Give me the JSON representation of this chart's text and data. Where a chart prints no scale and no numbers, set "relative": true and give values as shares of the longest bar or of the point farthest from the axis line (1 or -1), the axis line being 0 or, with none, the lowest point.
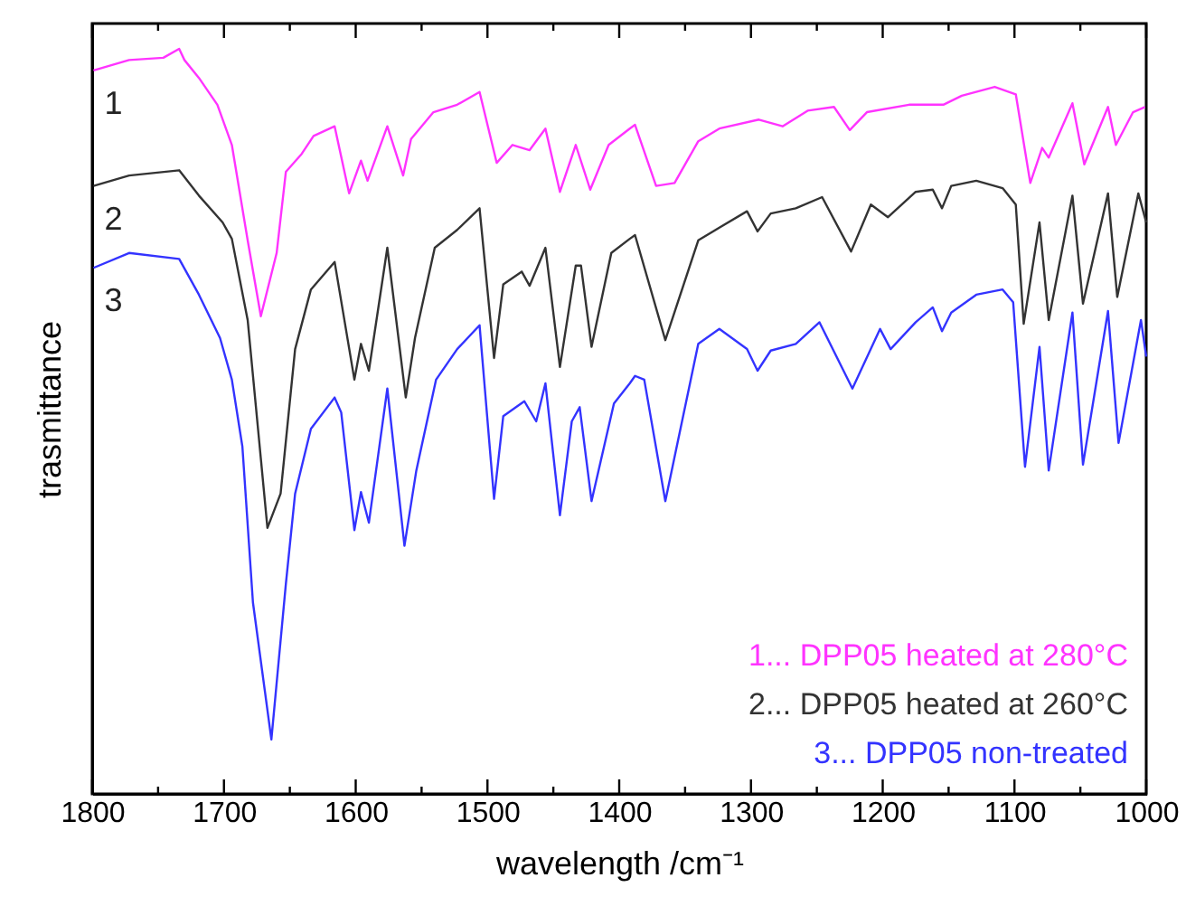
{
  "chart_data": {
    "type": "line",
    "relative": true,
    "xlabel": "wavelength /cm⁻¹",
    "ylabel": "trasmittance",
    "xlim": [
      1800,
      1000
    ],
    "xticks": [
      1800,
      {
        "value": 1750,
        "label": null
      },
      1700,
      {
        "value": 1650,
        "label": null
      },
      1600,
      {
        "value": 1550,
        "label": null
      },
      1500,
      {
        "value": 1450,
        "label": null
      },
      1400,
      {
        "value": 1350,
        "label": null
      },
      1300,
      {
        "value": 1250,
        "label": null
      },
      1200,
      {
        "value": 1150,
        "label": null
      },
      1100,
      {
        "value": 1050,
        "label": null
      },
      1000
    ],
    "grid": false,
    "legend": "bottom right",
    "marker": "none",
    "line_style": "solid",
    "annotations": [
      "1",
      "2",
      "3"
    ],
    "series": [
      {
        "name": "1... DPP05 heated at 280°C",
        "color": "#ff33ff",
        "x": [
          1799,
          1772,
          1746,
          1734,
          1730,
          1719,
          1705,
          1694,
          1682,
          1672,
          1660,
          1653,
          1641,
          1632,
          1616,
          1605,
          1596,
          1591,
          1576,
          1564,
          1558,
          1541,
          1523,
          1506,
          1493,
          1481,
          1468,
          1456,
          1445,
          1433,
          1422,
          1408,
          1392,
          1388,
          1372,
          1358,
          1340,
          1324,
          1294,
          1276,
          1257,
          1237,
          1225,
          1212,
          1180,
          1154,
          1140,
          1115,
          1099,
          1088,
          1079,
          1074,
          1056,
          1047,
          1029,
          1023,
          1010,
          1001
        ],
        "values": [
          0.971,
          0.985,
          0.988,
          1.0,
          0.985,
          0.961,
          0.925,
          0.871,
          0.743,
          0.641,
          0.726,
          0.835,
          0.859,
          0.883,
          0.896,
          0.806,
          0.85,
          0.823,
          0.896,
          0.83,
          0.879,
          0.915,
          0.925,
          0.942,
          0.847,
          0.871,
          0.864,
          0.893,
          0.808,
          0.871,
          0.811,
          0.871,
          0.893,
          0.898,
          0.816,
          0.82,
          0.876,
          0.893,
          0.905,
          0.896,
          0.917,
          0.922,
          0.891,
          0.915,
          0.925,
          0.925,
          0.937,
          0.949,
          0.939,
          0.82,
          0.867,
          0.854,
          0.927,
          0.845,
          0.922,
          0.871,
          0.915,
          0.922
        ]
      },
      {
        "name": "2... DPP05 heated at 260°C",
        "color": "#333333",
        "x": [
          1799,
          1772,
          1734,
          1719,
          1701,
          1694,
          1682,
          1667,
          1657,
          1646,
          1634,
          1616,
          1601,
          1596,
          1590,
          1576,
          1562,
          1555,
          1540,
          1523,
          1506,
          1495,
          1488,
          1474,
          1468,
          1456,
          1445,
          1433,
          1429,
          1421,
          1406,
          1392,
          1388,
          1365,
          1340,
          1324,
          1303,
          1295,
          1285,
          1266,
          1246,
          1224,
          1209,
          1196,
          1175,
          1162,
          1155,
          1148,
          1129,
          1109,
          1099,
          1093,
          1081,
          1074,
          1056,
          1048,
          1029,
          1022,
          1006,
          1000
        ],
        "values": [
          0.816,
          0.83,
          0.837,
          0.803,
          0.767,
          0.745,
          0.636,
          0.357,
          0.403,
          0.597,
          0.677,
          0.714,
          0.556,
          0.604,
          0.568,
          0.733,
          0.532,
          0.612,
          0.733,
          0.757,
          0.786,
          0.585,
          0.684,
          0.701,
          0.682,
          0.733,
          0.573,
          0.709,
          0.709,
          0.6,
          0.726,
          0.745,
          0.75,
          0.609,
          0.743,
          0.76,
          0.782,
          0.755,
          0.779,
          0.786,
          0.801,
          0.728,
          0.791,
          0.774,
          0.808,
          0.811,
          0.786,
          0.816,
          0.823,
          0.813,
          0.791,
          0.631,
          0.767,
          0.636,
          0.803,
          0.658,
          0.806,
          0.667,
          0.806,
          0.767
        ]
      },
      {
        "name": "3... DPP05 non-treated",
        "color": "#3333ff",
        "x": [
          1799,
          1772,
          1734,
          1719,
          1703,
          1694,
          1686,
          1678,
          1664,
          1653,
          1646,
          1634,
          1616,
          1611,
          1601,
          1596,
          1590,
          1576,
          1563,
          1554,
          1539,
          1523,
          1506,
          1495,
          1488,
          1472,
          1463,
          1456,
          1445,
          1436,
          1430,
          1421,
          1404,
          1392,
          1388,
          1381,
          1365,
          1340,
          1324,
          1303,
          1295,
          1285,
          1266,
          1248,
          1223,
          1202,
          1194,
          1175,
          1162,
          1155,
          1148,
          1129,
          1109,
          1101,
          1092,
          1081,
          1074,
          1056,
          1048,
          1029,
          1021,
          1004,
          1000
        ],
        "values": [
          0.706,
          0.726,
          0.718,
          0.67,
          0.612,
          0.556,
          0.466,
          0.257,
          0.073,
          0.282,
          0.403,
          0.49,
          0.532,
          0.512,
          0.354,
          0.405,
          0.364,
          0.544,
          0.333,
          0.434,
          0.556,
          0.597,
          0.629,
          0.396,
          0.507,
          0.527,
          0.5,
          0.551,
          0.374,
          0.5,
          0.519,
          0.393,
          0.524,
          0.551,
          0.561,
          0.556,
          0.393,
          0.604,
          0.624,
          0.597,
          0.568,
          0.595,
          0.604,
          0.633,
          0.544,
          0.624,
          0.597,
          0.633,
          0.653,
          0.621,
          0.646,
          0.67,
          0.677,
          0.66,
          0.439,
          0.6,
          0.434,
          0.646,
          0.442,
          0.648,
          0.471,
          0.636,
          0.587
        ]
      }
    ]
  }
}
